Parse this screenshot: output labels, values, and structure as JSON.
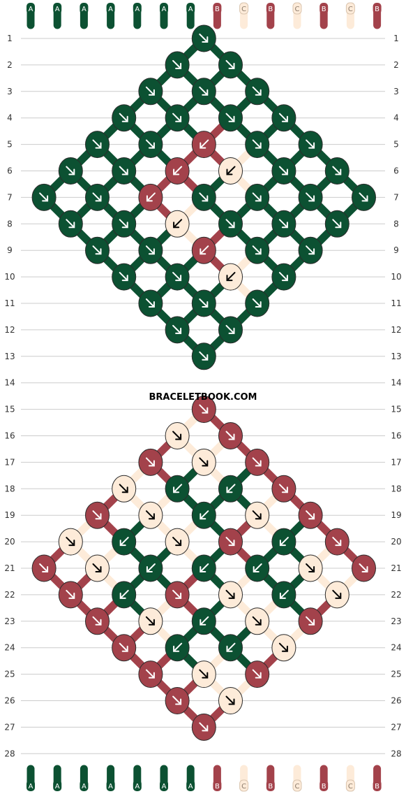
{
  "watermark": "BRACELETBOOK.COM",
  "colors": {
    "A": "#0c5132",
    "B": "#a3424b",
    "C": "#fdebd9"
  },
  "arrow_color": "#ffffff",
  "arrow_color_on_light": "#000000",
  "strings": [
    "A",
    "A",
    "A",
    "A",
    "A",
    "A",
    "A",
    "B",
    "C",
    "B",
    "C",
    "B",
    "C",
    "B"
  ],
  "row_labels": [
    "1",
    "2",
    "3",
    "4",
    "5",
    "6",
    "7",
    "8",
    "9",
    "10",
    "11",
    "12",
    "13",
    "14",
    "15",
    "16",
    "17",
    "18",
    "19",
    "20",
    "21",
    "22",
    "23",
    "24",
    "25",
    "26",
    "27",
    "28"
  ],
  "rows": [
    {
      "row": 1,
      "knots": [
        {
          "col": 7,
          "color": "A",
          "dir": "down-right"
        }
      ]
    },
    {
      "row": 2,
      "knots": [
        {
          "col": 6,
          "color": "A",
          "dir": "down-right"
        },
        {
          "col": 8,
          "color": "A",
          "dir": "down-right"
        }
      ]
    },
    {
      "row": 3,
      "knots": [
        {
          "col": 5,
          "color": "A",
          "dir": "down-right"
        },
        {
          "col": 7,
          "color": "A",
          "dir": "down-right"
        },
        {
          "col": 9,
          "color": "A",
          "dir": "down-right"
        }
      ]
    },
    {
      "row": 4,
      "knots": [
        {
          "col": 4,
          "color": "A",
          "dir": "down-right"
        },
        {
          "col": 6,
          "color": "A",
          "dir": "down-right"
        },
        {
          "col": 8,
          "color": "A",
          "dir": "down-right"
        },
        {
          "col": 10,
          "color": "A",
          "dir": "down-right"
        }
      ]
    },
    {
      "row": 5,
      "knots": [
        {
          "col": 3,
          "color": "A",
          "dir": "down-right"
        },
        {
          "col": 5,
          "color": "A",
          "dir": "down-right"
        },
        {
          "col": 7,
          "color": "B",
          "dir": "down-left"
        },
        {
          "col": 9,
          "color": "A",
          "dir": "down-right"
        },
        {
          "col": 11,
          "color": "A",
          "dir": "down-right"
        }
      ]
    },
    {
      "row": 6,
      "knots": [
        {
          "col": 2,
          "color": "A",
          "dir": "down-right"
        },
        {
          "col": 4,
          "color": "A",
          "dir": "down-right"
        },
        {
          "col": 6,
          "color": "B",
          "dir": "down-left"
        },
        {
          "col": 8,
          "color": "C",
          "dir": "down-left"
        },
        {
          "col": 10,
          "color": "A",
          "dir": "down-right"
        },
        {
          "col": 12,
          "color": "A",
          "dir": "down-right"
        }
      ]
    },
    {
      "row": 7,
      "knots": [
        {
          "col": 1,
          "color": "A",
          "dir": "down-right"
        },
        {
          "col": 3,
          "color": "A",
          "dir": "down-right"
        },
        {
          "col": 5,
          "color": "B",
          "dir": "down-left"
        },
        {
          "col": 7,
          "color": "A",
          "dir": "down-right"
        },
        {
          "col": 9,
          "color": "A",
          "dir": "down-right"
        },
        {
          "col": 11,
          "color": "A",
          "dir": "down-right"
        },
        {
          "col": 13,
          "color": "A",
          "dir": "down-right"
        }
      ]
    },
    {
      "row": 8,
      "knots": [
        {
          "col": 2,
          "color": "A",
          "dir": "down-right"
        },
        {
          "col": 4,
          "color": "A",
          "dir": "down-right"
        },
        {
          "col": 6,
          "color": "C",
          "dir": "down-left"
        },
        {
          "col": 8,
          "color": "A",
          "dir": "down-right"
        },
        {
          "col": 10,
          "color": "A",
          "dir": "down-right"
        },
        {
          "col": 12,
          "color": "A",
          "dir": "down-right"
        }
      ]
    },
    {
      "row": 9,
      "knots": [
        {
          "col": 3,
          "color": "A",
          "dir": "down-right"
        },
        {
          "col": 5,
          "color": "A",
          "dir": "down-right"
        },
        {
          "col": 7,
          "color": "B",
          "dir": "down-left"
        },
        {
          "col": 9,
          "color": "A",
          "dir": "down-right"
        },
        {
          "col": 11,
          "color": "A",
          "dir": "down-right"
        }
      ]
    },
    {
      "row": 10,
      "knots": [
        {
          "col": 4,
          "color": "A",
          "dir": "down-right"
        },
        {
          "col": 6,
          "color": "A",
          "dir": "down-right"
        },
        {
          "col": 8,
          "color": "C",
          "dir": "down-left"
        },
        {
          "col": 10,
          "color": "A",
          "dir": "down-right"
        }
      ]
    },
    {
      "row": 11,
      "knots": [
        {
          "col": 5,
          "color": "A",
          "dir": "down-right"
        },
        {
          "col": 7,
          "color": "A",
          "dir": "down-right"
        },
        {
          "col": 9,
          "color": "A",
          "dir": "down-right"
        }
      ]
    },
    {
      "row": 12,
      "knots": [
        {
          "col": 6,
          "color": "A",
          "dir": "down-right"
        },
        {
          "col": 8,
          "color": "A",
          "dir": "down-right"
        }
      ]
    },
    {
      "row": 13,
      "knots": [
        {
          "col": 7,
          "color": "A",
          "dir": "down-right"
        }
      ]
    },
    {
      "row": 14,
      "knots": []
    },
    {
      "row": 15,
      "knots": [
        {
          "col": 7,
          "color": "B",
          "dir": "down-right"
        }
      ]
    },
    {
      "row": 16,
      "knots": [
        {
          "col": 6,
          "color": "C",
          "dir": "down-right"
        },
        {
          "col": 8,
          "color": "B",
          "dir": "down-right"
        }
      ]
    },
    {
      "row": 17,
      "knots": [
        {
          "col": 5,
          "color": "B",
          "dir": "down-right"
        },
        {
          "col": 7,
          "color": "C",
          "dir": "down-right"
        },
        {
          "col": 9,
          "color": "B",
          "dir": "down-right"
        }
      ]
    },
    {
      "row": 18,
      "knots": [
        {
          "col": 4,
          "color": "C",
          "dir": "down-right"
        },
        {
          "col": 6,
          "color": "A",
          "dir": "down-left"
        },
        {
          "col": 8,
          "color": "A",
          "dir": "down-left"
        },
        {
          "col": 10,
          "color": "B",
          "dir": "down-right"
        }
      ]
    },
    {
      "row": 19,
      "knots": [
        {
          "col": 3,
          "color": "B",
          "dir": "down-right"
        },
        {
          "col": 5,
          "color": "C",
          "dir": "down-right"
        },
        {
          "col": 7,
          "color": "A",
          "dir": "down-left"
        },
        {
          "col": 9,
          "color": "C",
          "dir": "down-right"
        },
        {
          "col": 11,
          "color": "B",
          "dir": "down-right"
        }
      ]
    },
    {
      "row": 20,
      "knots": [
        {
          "col": 2,
          "color": "C",
          "dir": "down-right"
        },
        {
          "col": 4,
          "color": "A",
          "dir": "down-left"
        },
        {
          "col": 6,
          "color": "C",
          "dir": "down-right"
        },
        {
          "col": 8,
          "color": "B",
          "dir": "down-right"
        },
        {
          "col": 10,
          "color": "A",
          "dir": "down-left"
        },
        {
          "col": 12,
          "color": "B",
          "dir": "down-right"
        }
      ]
    },
    {
      "row": 21,
      "knots": [
        {
          "col": 1,
          "color": "B",
          "dir": "down-right"
        },
        {
          "col": 3,
          "color": "C",
          "dir": "down-right"
        },
        {
          "col": 5,
          "color": "A",
          "dir": "down-left"
        },
        {
          "col": 7,
          "color": "A",
          "dir": "down-left"
        },
        {
          "col": 9,
          "color": "A",
          "dir": "down-left"
        },
        {
          "col": 11,
          "color": "C",
          "dir": "down-right"
        },
        {
          "col": 13,
          "color": "B",
          "dir": "down-right"
        }
      ]
    },
    {
      "row": 22,
      "knots": [
        {
          "col": 2,
          "color": "B",
          "dir": "down-right"
        },
        {
          "col": 4,
          "color": "A",
          "dir": "down-left"
        },
        {
          "col": 6,
          "color": "B",
          "dir": "down-right"
        },
        {
          "col": 8,
          "color": "C",
          "dir": "down-right"
        },
        {
          "col": 10,
          "color": "A",
          "dir": "down-left"
        },
        {
          "col": 12,
          "color": "C",
          "dir": "down-right"
        }
      ]
    },
    {
      "row": 23,
      "knots": [
        {
          "col": 3,
          "color": "B",
          "dir": "down-right"
        },
        {
          "col": 5,
          "color": "C",
          "dir": "down-right"
        },
        {
          "col": 7,
          "color": "A",
          "dir": "down-left"
        },
        {
          "col": 9,
          "color": "C",
          "dir": "down-right"
        },
        {
          "col": 11,
          "color": "B",
          "dir": "down-right"
        }
      ]
    },
    {
      "row": 24,
      "knots": [
        {
          "col": 4,
          "color": "B",
          "dir": "down-right"
        },
        {
          "col": 6,
          "color": "A",
          "dir": "down-left"
        },
        {
          "col": 8,
          "color": "A",
          "dir": "down-left"
        },
        {
          "col": 10,
          "color": "C",
          "dir": "down-right"
        }
      ]
    },
    {
      "row": 25,
      "knots": [
        {
          "col": 5,
          "color": "B",
          "dir": "down-right"
        },
        {
          "col": 7,
          "color": "C",
          "dir": "down-right"
        },
        {
          "col": 9,
          "color": "B",
          "dir": "down-right"
        }
      ]
    },
    {
      "row": 26,
      "knots": [
        {
          "col": 6,
          "color": "B",
          "dir": "down-right"
        },
        {
          "col": 8,
          "color": "C",
          "dir": "down-right"
        }
      ]
    },
    {
      "row": 27,
      "knots": [
        {
          "col": 7,
          "color": "B",
          "dir": "down-right"
        }
      ]
    },
    {
      "row": 28,
      "knots": []
    }
  ]
}
